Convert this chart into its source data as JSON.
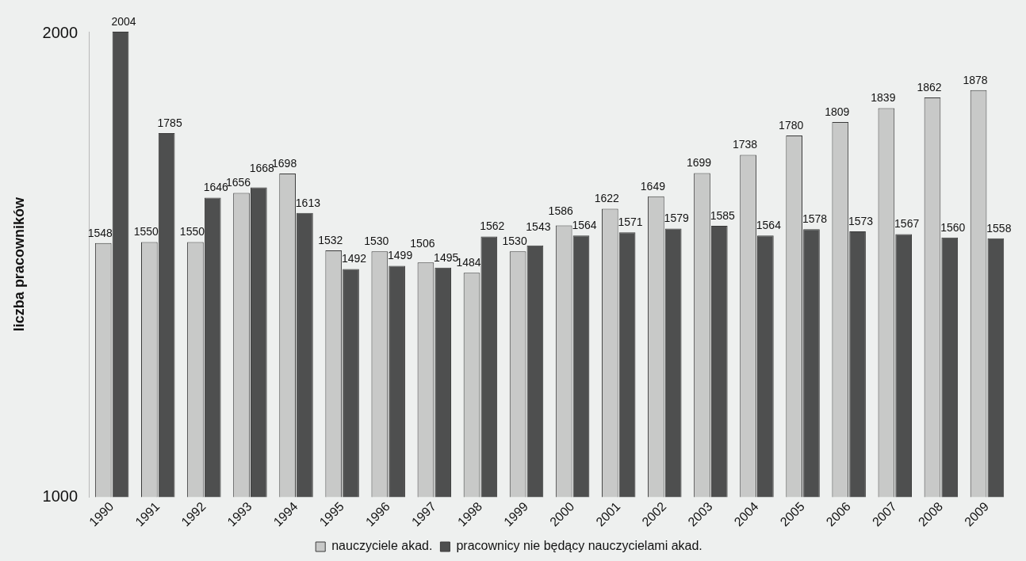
{
  "chart_data": {
    "type": "bar",
    "ylabel": "liczba pracowników",
    "categories": [
      "1990",
      "1991",
      "1992",
      "1993",
      "1994",
      "1995",
      "1996",
      "1997",
      "1998",
      "1999",
      "2000",
      "2001",
      "2002",
      "2003",
      "2004",
      "2005",
      "2006",
      "2007",
      "2008",
      "2009"
    ],
    "series": [
      {
        "name": "nauczyciele akad.",
        "color": "#c8c9c8",
        "values": [
          1548,
          1550,
          1550,
          1656,
          1698,
          1532,
          1530,
          1506,
          1484,
          1530,
          1586,
          1622,
          1649,
          1699,
          1738,
          1780,
          1809,
          1839,
          1862,
          1878
        ]
      },
      {
        "name": "pracownicy nie będący nauczycielami akad.",
        "color": "#4e4f4f",
        "values": [
          2004,
          1785,
          1646,
          1668,
          1613,
          1492,
          1499,
          1495,
          1562,
          1543,
          1564,
          1571,
          1579,
          1585,
          1564,
          1578,
          1573,
          1567,
          1560,
          1558
        ]
      }
    ],
    "ylim": [
      1000,
      2004
    ],
    "yticks": [
      1000,
      2000
    ],
    "grid": false,
    "legend": "bottom",
    "data_labels": true
  }
}
